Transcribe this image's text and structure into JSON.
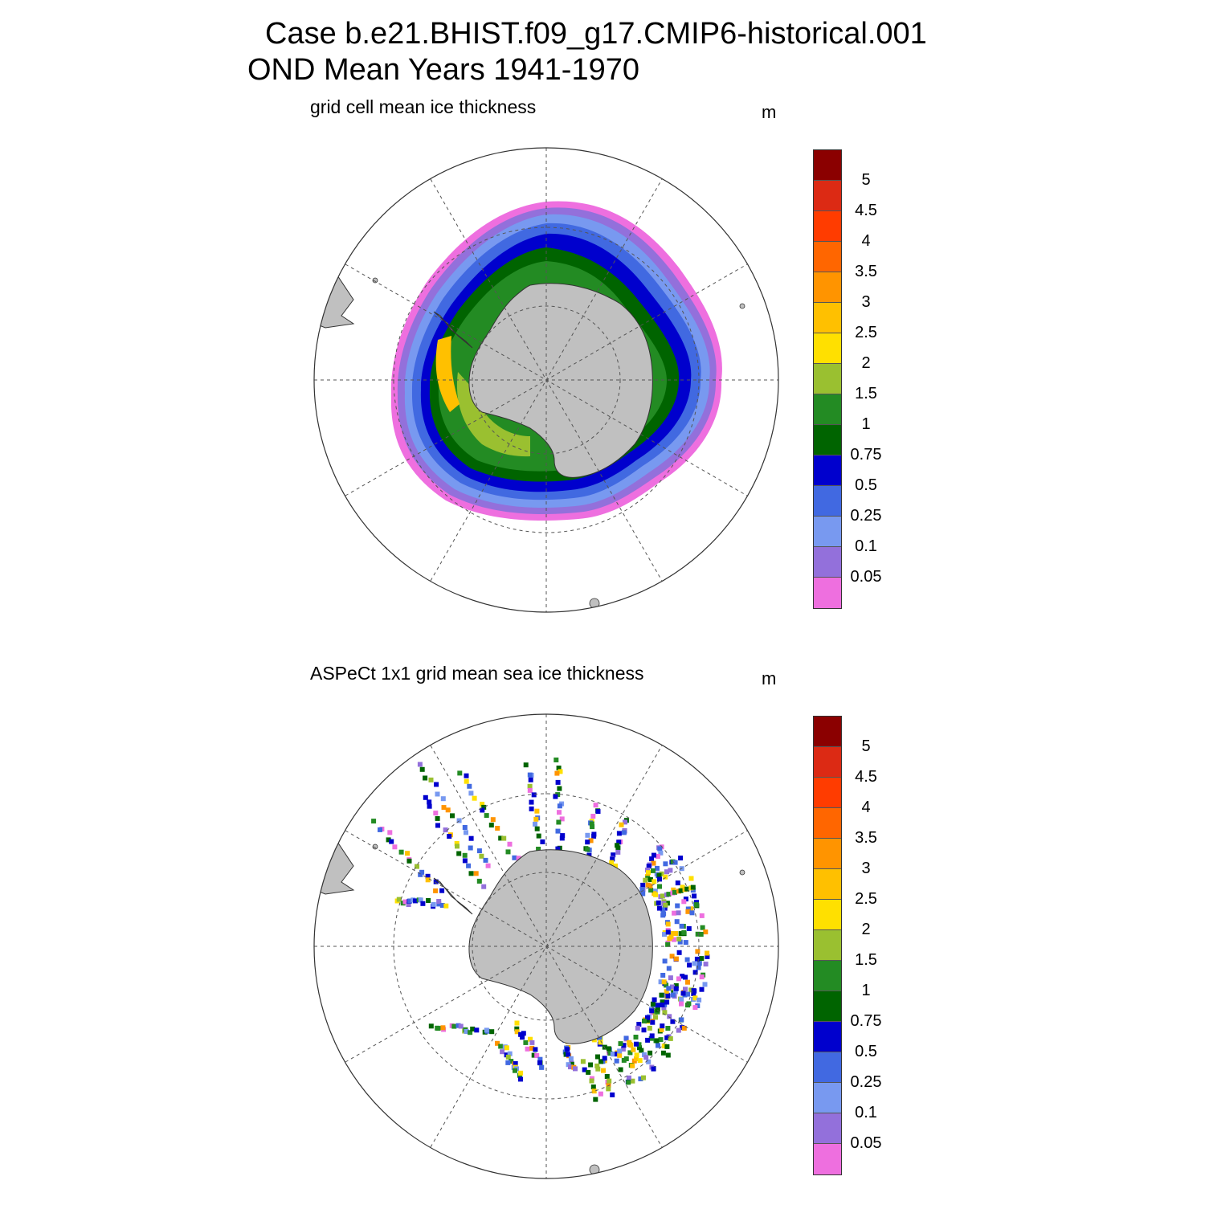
{
  "header": {
    "line1": "Case b.e21.BHIST.f09_g17.CMIP6-historical.001",
    "line2": "OND Mean   Years 1941-1970"
  },
  "panels": [
    {
      "id": "model",
      "subtitle": "grid cell mean ice thickness",
      "units": "m"
    },
    {
      "id": "obs",
      "subtitle": "ASPeCt 1x1 grid mean sea ice thickness",
      "units": "m"
    }
  ],
  "colorbar": {
    "colors": [
      "#8b0000",
      "#dc2a14",
      "#ff3c00",
      "#ff6600",
      "#ff9400",
      "#ffc000",
      "#ffe000",
      "#9ac030",
      "#238b23",
      "#006400",
      "#0000cd",
      "#4169e1",
      "#7899f0",
      "#9370db",
      "#ee6fdf"
    ],
    "labels": [
      "5",
      "4.5",
      "4",
      "3.5",
      "3",
      "2.5",
      "2",
      "1.5",
      "1",
      "0.75",
      "0.5",
      "0.25",
      "0.1",
      "0.05"
    ]
  },
  "map_style": {
    "land_color": "#c0c0c0",
    "grid_color": "#555555",
    "projection": "south polar stereographic"
  }
}
